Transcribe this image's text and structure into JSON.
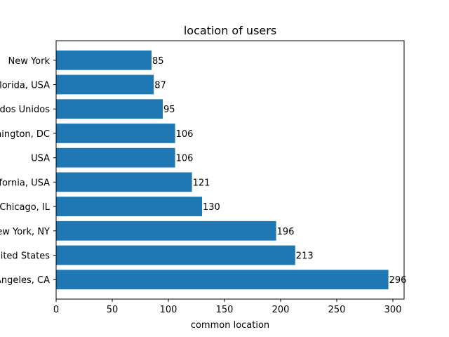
{
  "chart_data": {
    "type": "bar",
    "orientation": "horizontal",
    "title": "location of users",
    "xlabel": "common location",
    "ylabel": "",
    "categories": [
      "Los Angeles, CA",
      "United States",
      "New York, NY",
      "Chicago, IL",
      "California, USA",
      "USA",
      "Washington, DC",
      "Estados Unidos",
      "Florida, USA",
      "New York"
    ],
    "values": [
      296,
      213,
      196,
      130,
      121,
      106,
      106,
      95,
      87,
      85
    ],
    "xlim": [
      0,
      310
    ],
    "xticks": [
      0,
      50,
      100,
      150,
      200,
      250,
      300
    ],
    "grid": false,
    "bar_color": "#1f77b4",
    "data_labels": true
  }
}
